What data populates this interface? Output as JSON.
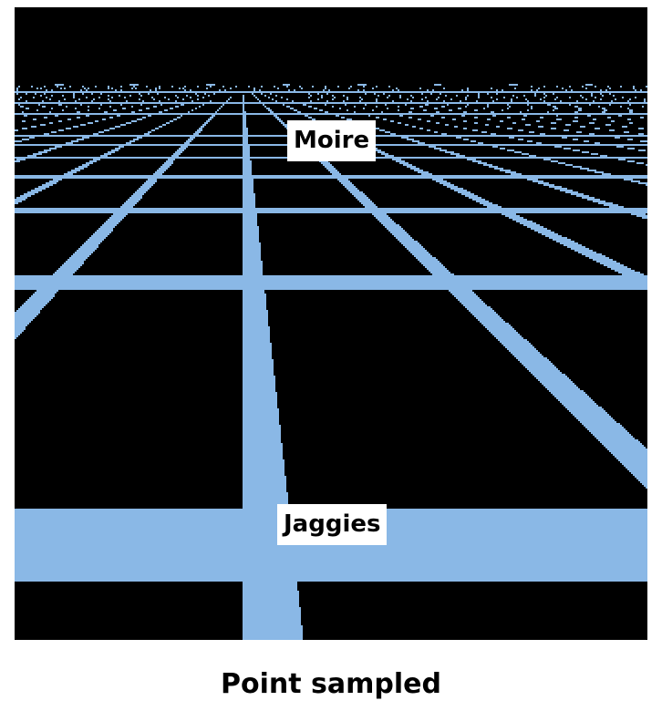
{
  "image": {
    "description_labels": {
      "top_label": "Moire",
      "bottom_label": "Jaggies"
    },
    "caption": "Point sampled",
    "colors": {
      "background": "#000000",
      "grid_lines": "#8ab8e6",
      "label_background": "#ffffff",
      "label_text": "#000000"
    }
  }
}
